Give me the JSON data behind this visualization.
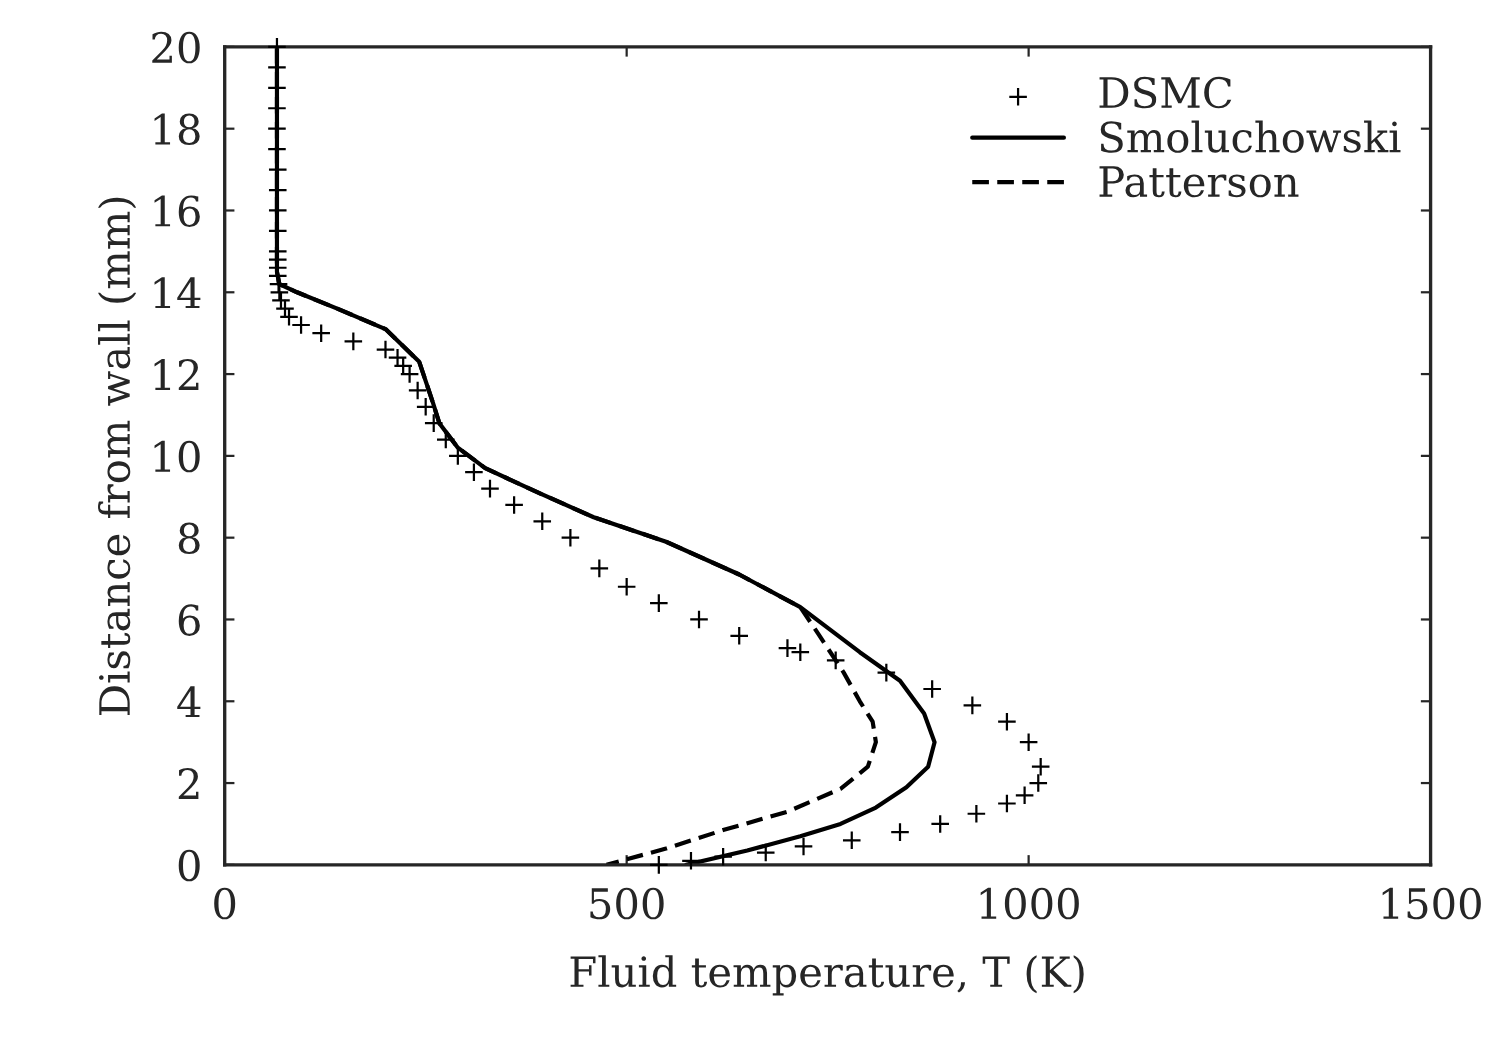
{
  "chart_data": {
    "type": "line",
    "xlabel": "Fluid temperature, T (K)",
    "ylabel": "Distance from wall (mm)",
    "xlim": [
      0,
      1500
    ],
    "xticks": [
      0,
      500,
      1000,
      1500
    ],
    "ylim": [
      0,
      20
    ],
    "yticks": [
      0,
      2,
      4,
      6,
      8,
      10,
      12,
      14,
      16,
      18,
      20
    ],
    "grid": false,
    "legend": "top right",
    "series": [
      {
        "name": "DSMC",
        "type": "scatter",
        "marker": "cross",
        "color": "#000000",
        "x": [
          65,
          65,
          65,
          65,
          65,
          65,
          66,
          66,
          66,
          66,
          66,
          66,
          66,
          66,
          67,
          68,
          70,
          75,
          80,
          95,
          120,
          160,
          200,
          215,
          222,
          230,
          240,
          250,
          260,
          275,
          290,
          310,
          330,
          360,
          395,
          430,
          466,
          500,
          540,
          590,
          640,
          700,
          716,
          760,
          823,
          880,
          930,
          973,
          1000,
          1015,
          1012,
          995,
          973,
          935,
          890,
          840,
          780,
          720,
          673,
          620,
          580,
          540
        ],
        "values": [
          20,
          19.5,
          19,
          18.5,
          18,
          17.5,
          17,
          16.5,
          16,
          15.5,
          15,
          14.8,
          14.6,
          14.4,
          14.2,
          14,
          13.8,
          13.6,
          13.4,
          13.2,
          13,
          12.8,
          12.6,
          12.4,
          12.2,
          12,
          11.6,
          11.2,
          10.8,
          10.4,
          10,
          9.6,
          9.2,
          8.8,
          8.4,
          8,
          7.25,
          6.8,
          6.4,
          6.0,
          5.6,
          5.3,
          5.2,
          5.0,
          4.7,
          4.3,
          3.9,
          3.5,
          3.0,
          2.4,
          2.0,
          1.7,
          1.5,
          1.25,
          1.0,
          0.8,
          0.6,
          0.45,
          0.3,
          0.2,
          0.1,
          0
        ]
      },
      {
        "name": "Smoluchowski",
        "line_style": "solid",
        "color": "#000000",
        "x": [
          65,
          65,
          68,
          90,
          140,
          200,
          242,
          259,
          267,
          290,
          324,
          390,
          459,
          549,
          640,
          716,
          790,
          840,
          870,
          883,
          875,
          848,
          810,
          766,
          716,
          650,
          574
        ],
        "values": [
          20,
          14.5,
          14.2,
          14.0,
          13.6,
          13.1,
          12.3,
          11.3,
          10.8,
          10.2,
          9.7,
          9.1,
          8.5,
          7.9,
          7.1,
          6.3,
          5.2,
          4.5,
          3.7,
          3.0,
          2.4,
          1.9,
          1.4,
          1.0,
          0.7,
          0.35,
          0
        ]
      },
      {
        "name": "Patterson",
        "line_style": "dashed",
        "color": "#000000",
        "x": [
          65,
          65,
          68,
          90,
          140,
          200,
          242,
          259,
          267,
          290,
          324,
          390,
          459,
          549,
          640,
          716,
          740,
          770,
          790,
          806,
          810,
          800,
          766,
          700,
          620,
          549,
          475
        ],
        "values": [
          20,
          14.5,
          14.2,
          14.0,
          13.6,
          13.1,
          12.3,
          11.3,
          10.8,
          10.2,
          9.7,
          9.1,
          8.5,
          7.9,
          7.1,
          6.3,
          5.6,
          4.7,
          4.0,
          3.5,
          3.0,
          2.4,
          1.86,
          1.3,
          0.85,
          0.4,
          0
        ]
      }
    ]
  }
}
